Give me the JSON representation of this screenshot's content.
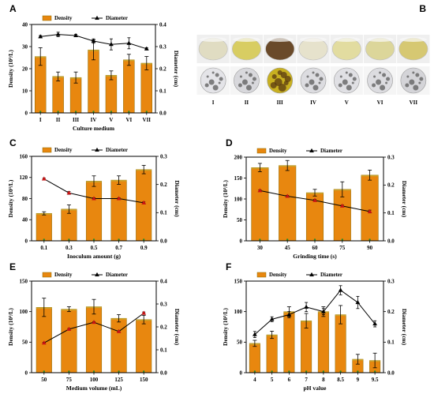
{
  "chart_data": [
    {
      "id": "A",
      "type": "bar",
      "panel_label": "A",
      "xlabel": "Culture medium",
      "ylabel": "Density (10³/L)",
      "y2label": "Diameter (cm)",
      "categories": [
        "I",
        "II",
        "III",
        "IV",
        "V",
        "VI",
        "VII"
      ],
      "ylim": [
        0,
        40
      ],
      "yticks": [
        0,
        10,
        20,
        30,
        40
      ],
      "y2lim": [
        0,
        0.4
      ],
      "y2ticks": [
        "0.0",
        "0.1",
        "0.2",
        "0.3",
        "0.4"
      ],
      "series": [
        {
          "name": "Density",
          "type": "bar",
          "values": [
            25.5,
            16.5,
            16,
            28.5,
            17,
            24,
            22.5
          ],
          "errors": [
            4,
            2,
            2.5,
            4.5,
            2,
            2.5,
            3
          ]
        },
        {
          "name": "Diameter",
          "type": "line",
          "axis": "y2",
          "values": [
            0.345,
            0.355,
            0.35,
            0.325,
            0.31,
            0.315,
            0.29
          ],
          "errors": [
            0.005,
            0.01,
            0.005,
            0.01,
            0.025,
            0.025,
            0.005
          ]
        }
      ],
      "legend": "top"
    },
    {
      "id": "C",
      "type": "bar",
      "panel_label": "C",
      "xlabel": "Inoculum amount (g)",
      "ylabel": "Density (10³/L)",
      "y2label": "Diameter (cm)",
      "categories": [
        "0.1",
        "0.3",
        "0.5",
        "0.7",
        "0.9"
      ],
      "ylim": [
        0,
        160
      ],
      "yticks": [
        0,
        40,
        80,
        120,
        160
      ],
      "y2lim": [
        0,
        0.3
      ],
      "y2ticks": [
        "0.0",
        "0.1",
        "0.2",
        "0.3"
      ],
      "series": [
        {
          "name": "Density",
          "type": "bar",
          "values": [
            52,
            60,
            113,
            115,
            135
          ],
          "errors": [
            3,
            8,
            10,
            8,
            8
          ]
        },
        {
          "name": "Diameter",
          "type": "line",
          "axis": "y2",
          "values": [
            0.22,
            0.17,
            0.15,
            0.15,
            0.135
          ],
          "errors": [
            0.003,
            0.005,
            0.003,
            0.003,
            0.003
          ]
        }
      ],
      "legend": "top"
    },
    {
      "id": "D",
      "type": "bar",
      "panel_label": "D",
      "xlabel": "Grinding time (s)",
      "ylabel": "Density (10³/L)",
      "y2label": "Diameter (cm)",
      "categories": [
        "30",
        "45",
        "60",
        "75",
        "90"
      ],
      "ylim": [
        0,
        200
      ],
      "yticks": [
        0,
        50,
        100,
        150,
        200
      ],
      "y2lim": [
        0,
        0.3
      ],
      "y2ticks": [
        "0.0",
        "0.1",
        "0.2",
        "0.3"
      ],
      "series": [
        {
          "name": "Density",
          "type": "bar",
          "values": [
            175,
            180,
            115,
            123,
            157
          ],
          "errors": [
            10,
            12,
            8,
            18,
            12
          ]
        },
        {
          "name": "Diameter",
          "type": "line",
          "axis": "y2",
          "values": [
            0.18,
            0.16,
            0.145,
            0.125,
            0.105
          ],
          "errors": [
            0.003,
            0.003,
            0.003,
            0.003,
            0.005
          ]
        }
      ],
      "legend": "top"
    },
    {
      "id": "E",
      "type": "bar",
      "panel_label": "E",
      "xlabel": "Medium volume (mL)",
      "ylabel": "Density (10³/L)",
      "y2label": "Diameter (cm)",
      "categories": [
        "50",
        "75",
        "100",
        "125",
        "150"
      ],
      "ylim": [
        0,
        150
      ],
      "yticks": [
        0,
        50,
        100,
        150
      ],
      "y2lim": [
        0,
        0.4
      ],
      "y2ticks": [
        "0.0",
        "0.1",
        "0.2",
        "0.3",
        "0.4"
      ],
      "series": [
        {
          "name": "Density",
          "type": "bar",
          "values": [
            107,
            104,
            108,
            89,
            87
          ],
          "errors": [
            15,
            4,
            12,
            6,
            7
          ]
        },
        {
          "name": "Diameter",
          "type": "line",
          "axis": "y2",
          "values": [
            0.13,
            0.19,
            0.22,
            0.18,
            0.26
          ],
          "errors": [
            0.003,
            0.003,
            0.003,
            0.003,
            0.005
          ]
        }
      ],
      "legend": "top"
    },
    {
      "id": "F",
      "type": "bar",
      "panel_label": "F",
      "xlabel": "pH value",
      "ylabel": "Density (10³/L)",
      "y2label": "Diameter (cm)",
      "categories": [
        "4",
        "5",
        "6",
        "7",
        "8",
        "8.5",
        "9",
        "9.5"
      ],
      "ylim": [
        0,
        150
      ],
      "yticks": [
        0,
        50,
        100,
        150
      ],
      "y2lim": [
        0,
        0.3
      ],
      "y2ticks": [
        "0.0",
        "0.1",
        "0.2",
        "0.3"
      ],
      "series": [
        {
          "name": "Density",
          "type": "bar",
          "values": [
            48,
            62,
            100,
            85,
            100,
            95,
            22,
            20
          ],
          "errors": [
            5,
            6,
            8,
            12,
            8,
            15,
            8,
            12
          ]
        },
        {
          "name": "Diameter",
          "type": "line",
          "axis": "y2",
          "values": [
            0.125,
            0.175,
            0.19,
            0.215,
            0.2,
            0.27,
            0.23,
            0.16
          ],
          "errors": [
            0.01,
            0.008,
            0.01,
            0.015,
            0.01,
            0.015,
            0.02,
            0.01
          ]
        }
      ],
      "legend": "top"
    }
  ],
  "photos": {
    "panel_label": "B",
    "labels": [
      "I",
      "II",
      "III",
      "IV",
      "V",
      "VI",
      "VII"
    ],
    "flask_colors": [
      "#e0dcc2",
      "#d8cd62",
      "#6a4a2a",
      "#e6e2cc",
      "#e2dca0",
      "#dcd69a",
      "#d6c872"
    ],
    "dish_colors": [
      "#e4e4e8",
      "#d8d8dc",
      "#c8b020",
      "#dcdce0",
      "#e0e0e4",
      "#dcdce0",
      "#d4d4d8"
    ]
  },
  "colors": {
    "bar": "#e8870f",
    "bar_top": "#c9a32a",
    "line": "#000000",
    "marker_red": "#c81414",
    "error_green": "#2a8a2a"
  }
}
